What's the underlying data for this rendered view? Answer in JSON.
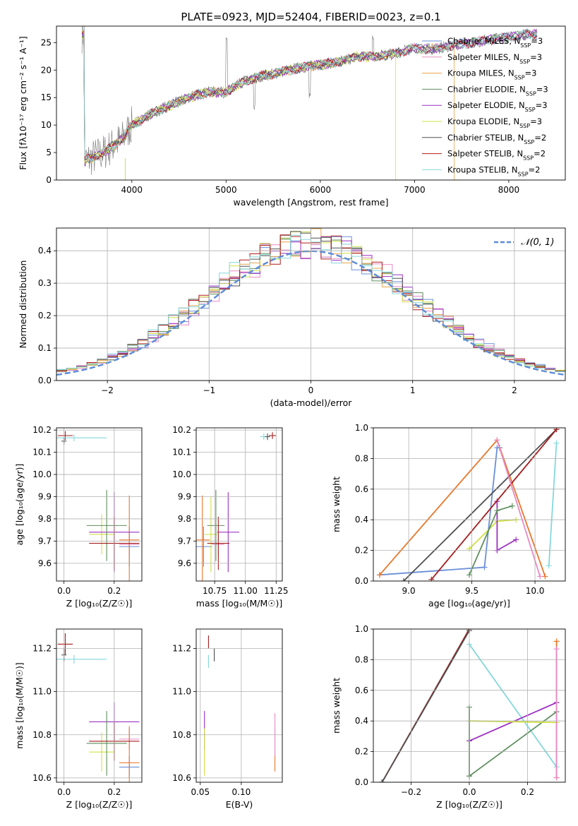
{
  "colors": {
    "series": [
      "#6a8fd8",
      "#e78ac3",
      "#e8a44a",
      "#5e8e5e",
      "#9b30c2",
      "#cfe043",
      "#505050",
      "#b21c1c",
      "#85d8db"
    ],
    "n01": "#5b8bd9",
    "orange": "#e8772b",
    "lime": "#cfe043",
    "darkred": "#a31d1d",
    "cyan": "#85d8db",
    "purple": "#9b30c2",
    "darkgreen": "#5e8e5e",
    "blue": "#6a8fd8",
    "pink": "#e78ac3",
    "dark": "#505050"
  },
  "chart_data": [
    {
      "id": "spectrum",
      "type": "line",
      "title": "PLATE=0923, MJD=52404, FIBERID=0023, z=0.1",
      "xlabel": "wavelength [Angstrom, rest frame]",
      "ylabel": "Flux [fλ10⁻¹⁷ erg cm⁻² s⁻¹ A⁻¹]",
      "xlim": [
        3200,
        8600
      ],
      "ylim": [
        0,
        28
      ],
      "xticks": [
        4000,
        5000,
        6000,
        7000,
        8000
      ],
      "yticks": [
        0,
        5,
        10,
        15,
        20,
        25
      ],
      "legend_position": "upper-right",
      "legend": [
        "Chabrier MILES, N_SSP=3",
        "Salpeter MILES, N_SSP=3",
        "Kroupa MILES, N_SSP=3",
        "Chabrier ELODIE, N_SSP=3",
        "Salpeter ELODIE, N_SSP=3",
        "Kroupa ELODIE, N_SSP=3",
        "Chabrier STELIB, N_SSP=2",
        "Salpeter STELIB, N_SSP=2",
        "Kroupa STELIB, N_SSP=2"
      ],
      "continuum": {
        "x": [
          3500,
          3700,
          3900,
          4000,
          4200,
          4400,
          4600,
          4800,
          5000,
          5200,
          5400,
          5600,
          5800,
          6000,
          6200,
          6400,
          6600,
          6800,
          7000,
          7200,
          7400,
          7600,
          7800,
          8000,
          8200,
          8300
        ],
        "y": [
          3.5,
          5.0,
          7.5,
          10.0,
          12.0,
          13.5,
          15.0,
          16.0,
          16.0,
          18.0,
          19.0,
          19.7,
          20.5,
          21.0,
          21.5,
          22.5,
          22.5,
          23.0,
          24.0,
          23.8,
          24.5,
          25.0,
          25.5,
          26.0,
          26.5,
          26.5
        ]
      }
    },
    {
      "id": "residuals",
      "type": "histogram",
      "xlabel": "(data-model)/error",
      "ylabel": "Normed distribution",
      "xlim": [
        -2.5,
        2.5
      ],
      "ylim": [
        0,
        0.47
      ],
      "xticks": [
        -2,
        -1,
        0,
        1,
        2
      ],
      "yticks": [
        0.0,
        0.1,
        0.2,
        0.3,
        0.4
      ],
      "grid": true,
      "legend": [
        "𝒩(0, 1)"
      ],
      "legend_position": "upper-right"
    },
    {
      "id": "age_vs_Z",
      "type": "errorbar",
      "xlabel": "Z [log₁₀(Z/Z☉)]",
      "ylabel": "age  [log₁₀(age/yr)]",
      "xlim": [
        -0.03,
        0.31
      ],
      "ylim": [
        9.52,
        10.21
      ],
      "xticks": [
        0.0,
        0.2
      ],
      "yticks": [
        9.6,
        9.7,
        9.8,
        9.9,
        10.0,
        10.1,
        10.2
      ],
      "grid": true,
      "points": [
        {
          "x": 0.26,
          "y": 9.675,
          "xerr": 0.04,
          "yerr": 0.09,
          "color": "blue"
        },
        {
          "x": 0.26,
          "y": 9.685,
          "xerr": 0.04,
          "yerr": 0.05,
          "color": "pink"
        },
        {
          "x": 0.26,
          "y": 9.705,
          "xerr": 0.04,
          "yerr": 0.2,
          "color": "orange"
        },
        {
          "x": 0.15,
          "y": 9.73,
          "xerr": 0.05,
          "yerr": 0.09,
          "color": "lime"
        },
        {
          "x": 0.2,
          "y": 9.74,
          "xerr": 0.1,
          "yerr": 0.18,
          "color": "purple"
        },
        {
          "x": 0.17,
          "y": 9.77,
          "xerr": 0.08,
          "yerr": 0.16,
          "color": "darkgreen"
        },
        {
          "x": 0.2,
          "y": 9.69,
          "xerr": 0.1,
          "yerr": 0.12,
          "color": "darkred"
        },
        {
          "x": 0.005,
          "y": 10.175,
          "xerr": 0.03,
          "yerr": 0.02,
          "color": "darkred"
        },
        {
          "x": 0.04,
          "y": 10.165,
          "xerr": 0.13,
          "yerr": 0.015,
          "color": "cyan"
        },
        {
          "x": 0.0,
          "y": 10.15,
          "xerr": 0.01,
          "yerr": 0.015,
          "color": "dark"
        }
      ]
    },
    {
      "id": "age_vs_mass",
      "type": "errorbar",
      "xlabel": "mass [log₁₀(M/M☉)]",
      "xlim": [
        10.6,
        11.3
      ],
      "ylim": [
        9.52,
        10.21
      ],
      "xticks": [
        10.75,
        11.0,
        11.25
      ],
      "yticks": [
        9.6,
        9.7,
        9.8,
        9.9,
        10.0,
        10.1,
        10.2
      ],
      "grid": true,
      "points": [
        {
          "x": 10.66,
          "y": 9.675,
          "xerr": 0.07,
          "yerr": 0.09,
          "color": "blue"
        },
        {
          "x": 10.78,
          "y": 9.685,
          "xerr": 0.05,
          "yerr": 0.05,
          "color": "pink"
        },
        {
          "x": 10.65,
          "y": 9.705,
          "xerr": 0.06,
          "yerr": 0.2,
          "color": "orange"
        },
        {
          "x": 10.72,
          "y": 9.73,
          "xerr": 0.05,
          "yerr": 0.17,
          "color": "lime"
        },
        {
          "x": 10.86,
          "y": 9.74,
          "xerr": 0.09,
          "yerr": 0.18,
          "color": "purple"
        },
        {
          "x": 10.76,
          "y": 9.77,
          "xerr": 0.07,
          "yerr": 0.16,
          "color": "darkgreen"
        },
        {
          "x": 10.78,
          "y": 9.69,
          "xerr": 0.09,
          "yerr": 0.12,
          "color": "darkred"
        },
        {
          "x": 11.22,
          "y": 10.175,
          "xerr": 0.03,
          "yerr": 0.015,
          "color": "darkred"
        },
        {
          "x": 11.15,
          "y": 10.17,
          "xerr": 0.03,
          "yerr": 0.015,
          "color": "cyan"
        },
        {
          "x": 11.18,
          "y": 10.17,
          "xerr": 0.02,
          "yerr": 0.015,
          "color": "dark"
        }
      ]
    },
    {
      "id": "weight_vs_age",
      "type": "line",
      "xlabel": "age  [log₁₀(age/yr)]",
      "ylabel": "mass weight",
      "xlim": [
        8.72,
        10.24
      ],
      "ylim": [
        0,
        1.0
      ],
      "xticks": [
        9.0,
        9.5,
        10.0
      ],
      "yticks": [
        0.0,
        0.2,
        0.4,
        0.6,
        0.8,
        1.0
      ],
      "grid": true,
      "series": [
        {
          "color": "blue",
          "x": [
            8.77,
            9.6,
            9.7,
            9.72,
            9.72
          ],
          "y": [
            0.04,
            0.09,
            0.87,
            0.87,
            0.87
          ]
        },
        {
          "color": "orange",
          "x": [
            8.77,
            9.7,
            10.08
          ],
          "y": [
            0.04,
            0.92,
            0.03
          ]
        },
        {
          "color": "lime",
          "x": [
            9.48,
            9.7,
            9.85
          ],
          "y": [
            0.21,
            0.39,
            0.4
          ]
        },
        {
          "color": "purple",
          "x": [
            9.7,
            9.7,
            9.85
          ],
          "y": [
            0.52,
            0.2,
            0.27
          ]
        },
        {
          "color": "darkgreen",
          "x": [
            9.48,
            9.7,
            9.82
          ],
          "y": [
            0.04,
            0.46,
            0.49
          ]
        },
        {
          "color": "dark",
          "x": [
            8.96,
            10.17
          ],
          "y": [
            0.0,
            0.99
          ]
        },
        {
          "color": "darkred",
          "x": [
            9.18,
            10.17
          ],
          "y": [
            0.01,
            0.99
          ]
        },
        {
          "color": "cyan",
          "x": [
            10.11,
            10.17
          ],
          "y": [
            0.1,
            0.9
          ]
        },
        {
          "color": "pink",
          "x": [
            9.7,
            10.04
          ],
          "y": [
            0.92,
            0.03
          ]
        }
      ]
    },
    {
      "id": "mass_vs_Z",
      "type": "errorbar",
      "xlabel": "Z [log₁₀(Z/Z☉)]",
      "ylabel": "mass [log₁₀(M/M☉)]",
      "xlim": [
        -0.03,
        0.31
      ],
      "ylim": [
        10.58,
        11.29
      ],
      "xticks": [
        0.0,
        0.2
      ],
      "yticks": [
        10.6,
        10.8,
        11.0,
        11.2
      ],
      "grid": true,
      "points": [
        {
          "x": 0.26,
          "y": 10.65,
          "xerr": 0.04,
          "yerr": 0.05,
          "color": "blue"
        },
        {
          "x": 0.26,
          "y": 10.78,
          "xerr": 0.04,
          "yerr": 0.05,
          "color": "pink"
        },
        {
          "x": 0.26,
          "y": 10.67,
          "xerr": 0.04,
          "yerr": 0.17,
          "color": "orange"
        },
        {
          "x": 0.15,
          "y": 10.72,
          "xerr": 0.05,
          "yerr": 0.09,
          "color": "lime"
        },
        {
          "x": 0.2,
          "y": 10.86,
          "xerr": 0.1,
          "yerr": 0.09,
          "color": "purple"
        },
        {
          "x": 0.17,
          "y": 10.76,
          "xerr": 0.08,
          "yerr": 0.15,
          "color": "darkgreen"
        },
        {
          "x": 0.2,
          "y": 10.77,
          "xerr": 0.1,
          "yerr": 0.09,
          "color": "darkred"
        },
        {
          "x": 0.005,
          "y": 11.22,
          "xerr": 0.03,
          "yerr": 0.05,
          "color": "darkred"
        },
        {
          "x": 0.04,
          "y": 11.15,
          "xerr": 0.13,
          "yerr": 0.02,
          "color": "cyan"
        },
        {
          "x": 0.0,
          "y": 11.17,
          "xerr": 0.01,
          "yerr": 0.03,
          "color": "dark"
        }
      ]
    },
    {
      "id": "mass_vs_ebv",
      "type": "errorbar",
      "xlabel": "E(B-V)",
      "xlim": [
        0.045,
        0.15
      ],
      "ylim": [
        10.58,
        11.29
      ],
      "xticks": [
        0.05,
        0.1
      ],
      "yticks": [
        10.6,
        10.8,
        11.0,
        11.2
      ],
      "grid": true,
      "points": [
        {
          "x": 0.141,
          "y": 10.73,
          "xerr": 0.0,
          "yerr": 0.1,
          "color": "orange"
        },
        {
          "x": 0.141,
          "y": 10.8,
          "xerr": 0.0,
          "yerr": 0.1,
          "color": "pink"
        },
        {
          "x": 0.055,
          "y": 10.82,
          "xerr": 0.0,
          "yerr": 0.09,
          "color": "purple"
        },
        {
          "x": 0.055,
          "y": 10.72,
          "xerr": 0.0,
          "yerr": 0.11,
          "color": "lime"
        },
        {
          "x": 0.06,
          "y": 11.23,
          "xerr": 0.0,
          "yerr": 0.03,
          "color": "darkred"
        },
        {
          "x": 0.06,
          "y": 11.14,
          "xerr": 0.0,
          "yerr": 0.03,
          "color": "cyan"
        },
        {
          "x": 0.067,
          "y": 11.17,
          "xerr": 0.0,
          "yerr": 0.03,
          "color": "dark"
        }
      ]
    },
    {
      "id": "weight_vs_Z",
      "type": "line",
      "xlabel": "Z [log₁₀(Z/Z☉)]",
      "ylabel": "mass weight",
      "xlim": [
        -0.33,
        0.33
      ],
      "ylim": [
        0,
        1.0
      ],
      "xticks": [
        -0.2,
        0.0,
        0.2
      ],
      "yticks": [
        0.0,
        0.2,
        0.4,
        0.6,
        0.8,
        1.0
      ],
      "grid": true,
      "series": [
        {
          "color": "darkred",
          "x": [
            -0.3,
            0.0
          ],
          "y": [
            0.0,
            1.0
          ]
        },
        {
          "color": "dark",
          "x": [
            -0.3,
            0.0
          ],
          "y": [
            0.0,
            0.99
          ]
        },
        {
          "color": "cyan",
          "x": [
            0.0,
            0.3
          ],
          "y": [
            0.9,
            0.1
          ]
        },
        {
          "color": "purple",
          "x": [
            0.0,
            0.3
          ],
          "y": [
            0.27,
            0.52
          ]
        },
        {
          "color": "darkgreen",
          "x": [
            0.0,
            0.3
          ],
          "y": [
            0.04,
            0.46
          ]
        },
        {
          "color": "lime",
          "x": [
            0.0,
            0.3
          ],
          "y": [
            0.4,
            0.39
          ]
        },
        {
          "color": "orange",
          "x": [
            0.3,
            0.3
          ],
          "y": [
            0.03,
            0.92
          ]
        },
        {
          "color": "pink",
          "x": [
            0.3,
            0.3
          ],
          "y": [
            0.03,
            0.87
          ]
        },
        {
          "color": "darkgreen",
          "x": [
            0.0,
            0.0
          ],
          "y": [
            0.04,
            0.49
          ]
        }
      ]
    }
  ]
}
